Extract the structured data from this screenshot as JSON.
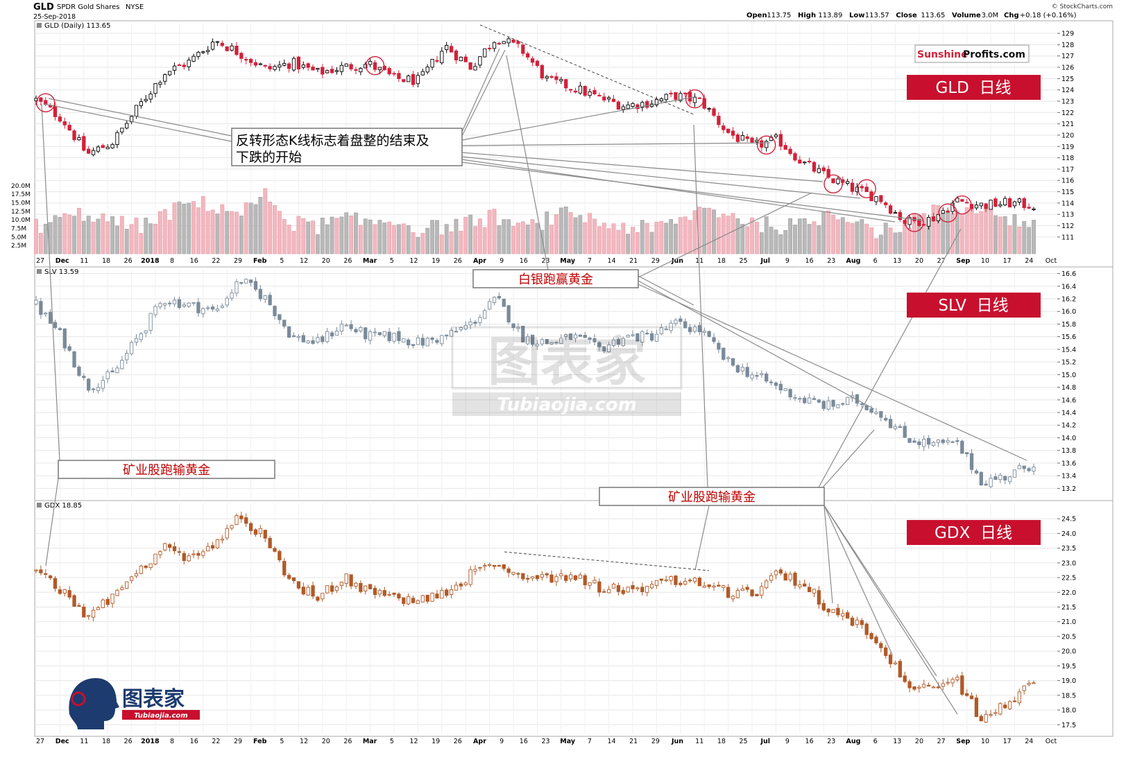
{
  "header": {
    "symbol": "GLD",
    "name": "SPDR Gold Shares",
    "exchange": "NYSE",
    "date": "25-Sep-2018",
    "copyright": "© StockCharts.com",
    "quote": [
      {
        "label": "Open",
        "value": "113.75"
      },
      {
        "label": "High",
        "value": "113.89"
      },
      {
        "label": "Low",
        "value": "113.57"
      },
      {
        "label": "Close",
        "value": "113.65"
      },
      {
        "label": "Volume",
        "value": "3.0M"
      },
      {
        "label": "Chg",
        "value": "+0.18 (+0.16%)"
      }
    ]
  },
  "brand": {
    "sunshine": "Sunshine",
    "profits": "Profits.com"
  },
  "watermark": {
    "main": "图表家",
    "sub": "Tubiaojia.com"
  },
  "logo": {
    "main": "图表家",
    "sub": "Tubiaojia.com"
  },
  "annotations": {
    "gld_reversal": [
      "反转形态K线标志着盘整的结束及",
      "下跌的开始"
    ],
    "slv_outperform": "白银跑赢黄金",
    "miners_underperform_left": "矿业股跑输黄金",
    "miners_underperform_right": "矿业股跑输黄金"
  },
  "colors": {
    "up": "#ffffff",
    "down_gld": "#d2213a",
    "slv": "#7a8a99",
    "gdx": "#b05a28",
    "panel_label_bg": "#c8102e"
  },
  "chart_data": [
    {
      "id": "gld",
      "type": "candlestick",
      "title": "GLD (Daily) 113.65",
      "panel_label": "GLD  日线",
      "ylim": [
        110.5,
        129.8
      ],
      "yticks": [
        111,
        112,
        113,
        114,
        115,
        116,
        117,
        118,
        119,
        120,
        121,
        122,
        123,
        124,
        125,
        126,
        127,
        128,
        129
      ],
      "anchors": [
        123.1,
        121.5,
        118.3,
        119.4,
        122.5,
        125.5,
        126.5,
        128.4,
        127.2,
        125.8,
        126.4,
        125.5,
        126.0,
        126.3,
        125.0,
        124.8,
        127.9,
        126.0,
        128.7,
        127.5,
        124.8,
        124.2,
        123.3,
        122.6,
        122.9,
        123.5,
        123.0,
        120.3,
        119.0,
        119.6,
        117.5,
        116.2,
        115.2,
        114.4,
        112.3,
        112.6,
        114.2,
        113.8,
        114.0,
        113.8
      ],
      "highlight_candles": [
        2,
        71,
        138,
        153,
        167,
        174,
        184,
        191,
        194
      ],
      "volume": {
        "labels": [
          "20.0M",
          "17.5M",
          "15.0M",
          "12.5M",
          "10.0M",
          "7.5M",
          "5.0M",
          "2.5M"
        ],
        "values_m": [
          20.0,
          17.5,
          15.0,
          12.5,
          10.0,
          7.5,
          5.0,
          2.5
        ],
        "vmax": 22.5,
        "anchors_m": [
          8,
          10,
          12,
          9,
          8,
          11,
          15,
          14,
          12,
          17,
          9,
          8,
          10,
          9,
          10,
          7,
          8,
          9,
          11,
          7,
          10,
          12,
          9,
          8,
          7,
          9,
          13,
          12,
          9,
          8,
          8,
          12,
          11,
          6,
          9,
          12,
          13,
          14,
          10,
          9
        ]
      }
    },
    {
      "id": "slv",
      "type": "candlestick",
      "title": "SLV 13.59",
      "panel_label": "SLV  日线",
      "ylim": [
        13.05,
        16.65
      ],
      "yticks": [
        13.2,
        13.4,
        13.6,
        13.8,
        14.0,
        14.2,
        14.4,
        14.6,
        14.8,
        15.0,
        15.2,
        15.4,
        15.6,
        15.8,
        16.0,
        16.2,
        16.4,
        16.6
      ],
      "anchors": [
        16.1,
        15.6,
        14.8,
        15.0,
        15.6,
        16.2,
        16.1,
        16.0,
        16.5,
        16.2,
        15.6,
        15.5,
        15.8,
        15.6,
        15.6,
        15.5,
        15.6,
        15.8,
        16.2,
        15.6,
        15.5,
        15.6,
        15.4,
        15.6,
        15.6,
        15.8,
        15.7,
        15.2,
        15.0,
        14.8,
        14.6,
        14.5,
        14.6,
        14.4,
        14.0,
        13.9,
        13.9,
        13.3,
        13.4,
        13.6
      ]
    },
    {
      "id": "gdx",
      "type": "candlestick",
      "title": "GDX 18.85",
      "panel_label": "GDX  日线",
      "ylim": [
        17.2,
        25.0
      ],
      "yticks": [
        17.5,
        18.0,
        18.5,
        19.0,
        19.5,
        20.0,
        20.5,
        21.0,
        21.5,
        22.0,
        22.5,
        23.0,
        23.5,
        24.0,
        24.5
      ],
      "anchors": [
        22.7,
        22.0,
        21.2,
        21.8,
        22.8,
        23.5,
        23.2,
        23.7,
        24.6,
        23.8,
        22.3,
        21.8,
        22.5,
        22.0,
        21.8,
        21.7,
        22.0,
        22.6,
        23.0,
        22.5,
        22.5,
        22.6,
        22.2,
        22.1,
        22.2,
        22.4,
        22.3,
        22.0,
        21.9,
        22.6,
        22.3,
        21.4,
        21.0,
        20.3,
        18.9,
        18.6,
        19.0,
        17.6,
        18.3,
        18.9
      ]
    }
  ],
  "x_axis": {
    "labels": [
      {
        "text": "27",
        "bold": false
      },
      {
        "text": "Dec",
        "bold": true
      },
      {
        "text": "11",
        "bold": false
      },
      {
        "text": "18",
        "bold": false
      },
      {
        "text": "26",
        "bold": false
      },
      {
        "text": "2018",
        "bold": true
      },
      {
        "text": "8",
        "bold": false
      },
      {
        "text": "16",
        "bold": false
      },
      {
        "text": "22",
        "bold": false
      },
      {
        "text": "29",
        "bold": false
      },
      {
        "text": "Feb",
        "bold": true
      },
      {
        "text": "5",
        "bold": false
      },
      {
        "text": "12",
        "bold": false
      },
      {
        "text": "20",
        "bold": false
      },
      {
        "text": "26",
        "bold": false
      },
      {
        "text": "Mar",
        "bold": true
      },
      {
        "text": "5",
        "bold": false
      },
      {
        "text": "12",
        "bold": false
      },
      {
        "text": "19",
        "bold": false
      },
      {
        "text": "26",
        "bold": false
      },
      {
        "text": "Apr",
        "bold": true
      },
      {
        "text": "9",
        "bold": false
      },
      {
        "text": "16",
        "bold": false
      },
      {
        "text": "23",
        "bold": false
      },
      {
        "text": "May",
        "bold": true
      },
      {
        "text": "7",
        "bold": false
      },
      {
        "text": "14",
        "bold": false
      },
      {
        "text": "21",
        "bold": false
      },
      {
        "text": "29",
        "bold": false
      },
      {
        "text": "Jun",
        "bold": true
      },
      {
        "text": "11",
        "bold": false
      },
      {
        "text": "18",
        "bold": false
      },
      {
        "text": "25",
        "bold": false
      },
      {
        "text": "Jul",
        "bold": true
      },
      {
        "text": "9",
        "bold": false
      },
      {
        "text": "16",
        "bold": false
      },
      {
        "text": "23",
        "bold": false
      },
      {
        "text": "Aug",
        "bold": true
      },
      {
        "text": "6",
        "bold": false
      },
      {
        "text": "13",
        "bold": false
      },
      {
        "text": "20",
        "bold": false
      },
      {
        "text": "27",
        "bold": false
      },
      {
        "text": "Sep",
        "bold": true
      },
      {
        "text": "10",
        "bold": false
      },
      {
        "text": "17",
        "bold": false
      },
      {
        "text": "24",
        "bold": false
      },
      {
        "text": "Oct",
        "bold": false
      }
    ]
  }
}
